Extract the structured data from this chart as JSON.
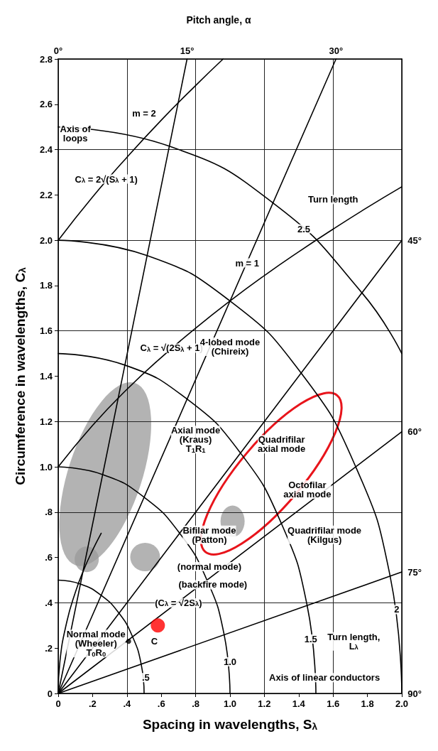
{
  "chart_data": {
    "type": "line",
    "title": "Pitch angle, α",
    "xlabel": "Spacing in wavelengths, S$_{λ}$",
    "ylabel": "Circumference in wavelengths, C$_{λ}$",
    "xlim": [
      0,
      2
    ],
    "ylim": [
      0,
      2.8
    ],
    "xticks": [
      0,
      {
        "value": 0.2,
        "label": ".2"
      },
      {
        "value": 0.4,
        "label": ".4"
      },
      {
        "value": 0.6,
        "label": ".6"
      },
      {
        "value": 0.8,
        "label": ".8"
      },
      {
        "value": 1,
        "label": "1.0"
      },
      1.2,
      1.4,
      1.6,
      1.8,
      {
        "value": 2,
        "label": "2.0"
      }
    ],
    "yticks": [
      0,
      {
        "value": 0.2,
        "label": ".2"
      },
      {
        "value": 0.4,
        "label": ".4"
      },
      {
        "value": 0.6,
        "label": ".6"
      },
      {
        "value": 0.8,
        "label": ".8"
      },
      {
        "value": 1,
        "label": "1.0"
      },
      1.2,
      1.4,
      1.6,
      1.8,
      {
        "value": 2,
        "label": "2.0"
      },
      2.2,
      2.4,
      2.6,
      2.8
    ],
    "grid": true,
    "line_style": "solid",
    "series": [
      {
        "color": "#000000",
        "x": [
          0,
          0.2,
          0.4,
          0.6,
          0.8,
          1.0,
          1.2,
          1.4,
          1.6,
          1.8,
          2.0
        ],
        "values": [
          1,
          1.183,
          1.342,
          1.483,
          1.612,
          1.732,
          1.844,
          1.949,
          2.049,
          2.145,
          2.236
        ]
      },
      {
        "color": "#000000",
        "x": [
          0,
          0.2,
          0.4,
          0.6,
          0.8,
          0.96
        ],
        "values": [
          2,
          2.191,
          2.366,
          2.53,
          2.683,
          2.8
        ]
      },
      {
        "color": "#000000",
        "x": [
          0,
          0.01,
          0.05,
          0.1,
          0.15,
          0.2,
          0.25
        ],
        "values": [
          0,
          0.141,
          0.316,
          0.447,
          0.548,
          0.632,
          0.707
        ]
      },
      {
        "color": "#000000",
        "x": [
          0.5,
          0.483,
          0.433,
          0.354,
          0.25,
          0.129,
          0
        ],
        "values": [
          0,
          0.129,
          0.25,
          0.354,
          0.433,
          0.483,
          0.5
        ]
      },
      {
        "color": "#000000",
        "x": [
          1,
          0.966,
          0.866,
          0.707,
          0.5,
          0.259,
          0
        ],
        "values": [
          0,
          0.259,
          0.5,
          0.707,
          0.866,
          0.966,
          1
        ]
      },
      {
        "color": "#000000",
        "x": [
          1.5,
          1.449,
          1.299,
          1.061,
          0.75,
          0.388,
          0
        ],
        "values": [
          0,
          0.388,
          0.75,
          1.061,
          1.299,
          1.449,
          1.5
        ]
      },
      {
        "color": "#000000",
        "x": [
          2,
          1.932,
          1.732,
          1.414,
          1,
          0.518,
          0
        ],
        "values": [
          0,
          0.518,
          1,
          1.414,
          1.732,
          1.932,
          2
        ]
      },
      {
        "color": "#000000",
        "x": [
          2,
          1.768,
          1.25,
          0.647,
          0
        ],
        "values": [
          1.5,
          1.768,
          2.165,
          2.415,
          2.5
        ]
      },
      {
        "color": "#000000",
        "x": [
          0,
          0.75
        ],
        "values": [
          0,
          2.8
        ]
      },
      {
        "color": "#000000",
        "x": [
          0,
          1.617
        ],
        "values": [
          0,
          2.8
        ]
      },
      {
        "color": "#000000",
        "x": [
          0,
          2
        ],
        "values": [
          0,
          2
        ]
      },
      {
        "color": "#000000",
        "x": [
          0,
          2
        ],
        "values": [
          0,
          1.155
        ]
      },
      {
        "color": "#000000",
        "x": [
          0,
          2
        ],
        "values": [
          0,
          0.536
        ]
      },
      {
        "type": "scatter",
        "marker": "circle",
        "color": "#ff0000",
        "x": [
          0.58
        ],
        "values": [
          0.3
        ]
      },
      {
        "type": "scatter",
        "marker": "circle",
        "color": "#000000",
        "x": [
          0.41
        ],
        "values": [
          0.23
        ]
      }
    ],
    "annotations": [
      {
        "text": "Axis of\nloops",
        "x": 0.1,
        "y": 2.47
      },
      {
        "text": "m = 2",
        "x": 0.5,
        "y": 2.56
      },
      {
        "text": "C$_{λ}$ = 2√(S$_{λ}$ + 1)",
        "x": 0.28,
        "y": 2.27
      },
      "Turn length",
      {
        "text": "2.5",
        "x": 1.43,
        "y": 2.05
      },
      {
        "text": "m = 1",
        "x": 1.1,
        "y": 1.9
      },
      {
        "text": "C$_{λ}$ = √(2S$_{λ}$ + 1)",
        "x": 0.66,
        "y": 1.524
      },
      "4-lobed mode\n(Chireix)",
      "Axial mode\n(Kraus)\nT$_{1}$R$_{1}$",
      "Quadrifilar\naxial mode",
      "Octofilar\naxial mode",
      "Quadrifilar mode\n(Kilgus)",
      "Bifilar mode\n(Patton)",
      "(normal mode)",
      "(backfire mode)",
      {
        "text": "(C$_{λ}$ = √2S$_{λ}$)",
        "x": 0.7,
        "y": 0.4
      },
      "Normal mode\n(Wheeler)\nT$_{0}$R$_{0}$",
      {
        "text": "C",
        "x": 0.56,
        "y": 0.23
      },
      {
        "text": ".5",
        "x": 0.51,
        "y": 0.07
      },
      {
        "text": "1.0",
        "x": 1.0,
        "y": 0.14
      },
      {
        "text": "1.5",
        "x": 1.47,
        "y": 0.24
      },
      {
        "text": "2",
        "x": 1.97,
        "y": 0.37
      },
      "Turn length,\nL$_{λ}$",
      "Axis of linear conductors",
      "0°",
      {
        "text": "15°",
        "x": 0.75,
        "y": 2.8
      },
      {
        "text": "30°",
        "x": 1.617,
        "y": 2.8
      },
      {
        "text": "45°",
        "x": 2,
        "y": 2
      },
      {
        "text": "60°",
        "x": 2,
        "y": 1.155
      },
      {
        "text": "75°",
        "x": 2,
        "y": 0.536
      },
      {
        "text": "90°",
        "x": 2,
        "y": 0
      }
    ]
  }
}
